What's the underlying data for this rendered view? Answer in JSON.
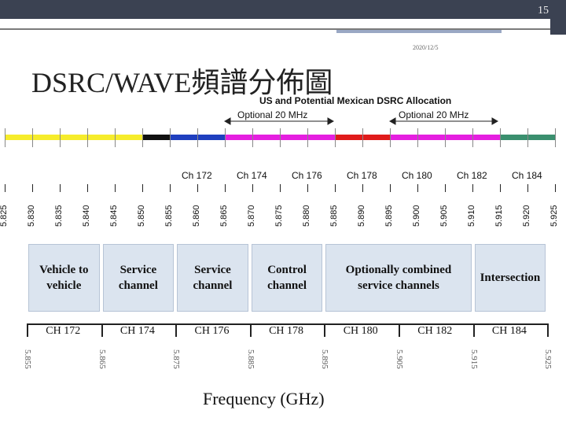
{
  "slide_number": "15",
  "date": "2020/12/5",
  "title": "DSRC/WAVE頻譜分佈圖",
  "top_chart": {
    "title": "US and Potential Mexican DSRC Allocation",
    "optional_labels": [
      "Optional 20 MHz",
      "Optional 20 MHz"
    ],
    "channels": [
      "Ch 172",
      "Ch 174",
      "Ch 176",
      "Ch 178",
      "Ch 180",
      "Ch 182",
      "Ch 184"
    ],
    "frequencies": [
      "5.825",
      "5.830",
      "5.835",
      "5.840",
      "5.845",
      "5.850",
      "5.855",
      "5.860",
      "5.865",
      "5.870",
      "5.875",
      "5.880",
      "5.885",
      "5.890",
      "5.895",
      "5.900",
      "5.905",
      "5.910",
      "5.915",
      "5.920",
      "5.925"
    ],
    "band_colors": [
      "#f6ec2b",
      "#111111",
      "#1f3fbf",
      "#e51fe0",
      "#e01b1b",
      "#e51fe0",
      "#3a8f6e"
    ]
  },
  "bottom_diagram": {
    "boxes": [
      "Vehicle to\nvehicle",
      "Service\nchannel",
      "Service\nchannel",
      "Control\nchannel",
      "Optionally combined\nservice channels",
      "Intersection"
    ],
    "channels": [
      "CH 172",
      "CH 174",
      "CH 176",
      "CH 178",
      "CH 180",
      "CH 182",
      "CH 184"
    ],
    "frequencies": [
      "5.855",
      "5.865",
      "5.875",
      "5.885",
      "5.895",
      "5.905",
      "5.915",
      "5.925"
    ],
    "xlabel": "Frequency (GHz)"
  }
}
